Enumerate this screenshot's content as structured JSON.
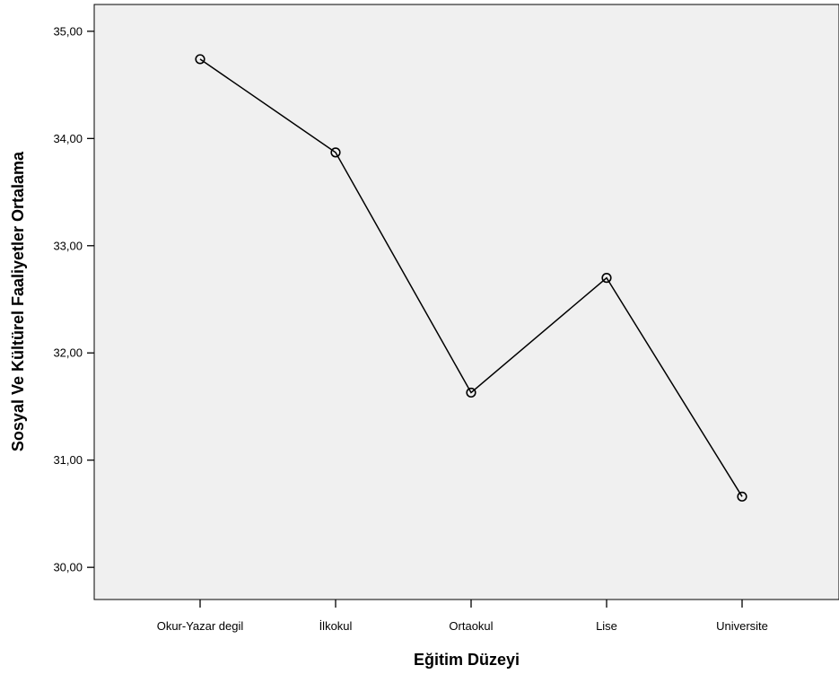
{
  "chart_data": {
    "type": "line",
    "xlabel": "Eğitim Düzeyi",
    "ylabel": "Sosyal Ve Kültürel Faaliyetler Ortalama",
    "categories": [
      "Okur-Yazar degil",
      "İlkokul",
      "Ortaokul",
      "Lise",
      "Universite"
    ],
    "values": [
      34.74,
      33.87,
      31.63,
      32.7,
      30.66
    ],
    "ylim": [
      29.7,
      35.25
    ],
    "yticks": [
      "30,00",
      "31,00",
      "32,00",
      "33,00",
      "34,00",
      "35,00"
    ],
    "marker": "open-circle",
    "grid": false,
    "colors": {
      "plot_background": "#f0f0f0",
      "line": "#000000"
    }
  }
}
